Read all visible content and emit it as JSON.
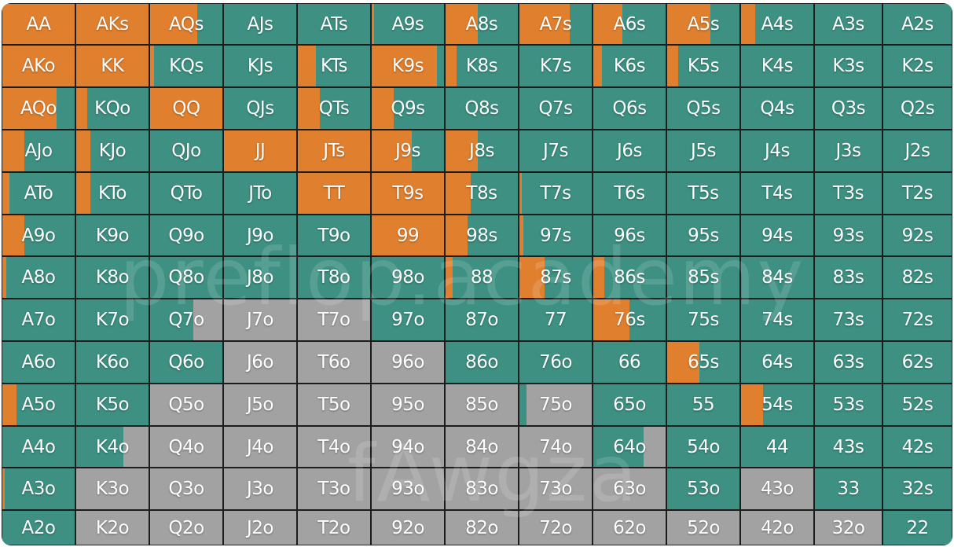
{
  "legend_colors": {
    "raise": "#e07f2e",
    "call": "#3d9082",
    "fold": "#a2a2a2"
  },
  "watermarks": [
    "preflop.academy",
    "fAwgza"
  ],
  "rows": [
    [
      [
        "AA",
        1,
        0
      ],
      [
        "AKs",
        1,
        0
      ],
      [
        "AQs",
        0.65,
        0
      ],
      [
        "AJs",
        0,
        0
      ],
      [
        "ATs",
        0,
        0
      ],
      [
        "A9s",
        0.03,
        0
      ],
      [
        "A8s",
        0.45,
        0
      ],
      [
        "A7s",
        0.7,
        0
      ],
      [
        "A6s",
        0.4,
        0
      ],
      [
        "A5s",
        0.6,
        0
      ],
      [
        "A4s",
        0.2,
        0
      ],
      [
        "A3s",
        0,
        0
      ],
      [
        "A2s",
        0,
        0
      ]
    ],
    [
      [
        "AKo",
        1,
        0
      ],
      [
        "KK",
        1,
        0
      ],
      [
        "KQs",
        0.05,
        0
      ],
      [
        "KJs",
        0,
        0
      ],
      [
        "KTs",
        0.25,
        0
      ],
      [
        "K9s",
        0.9,
        0
      ],
      [
        "K8s",
        0.15,
        0
      ],
      [
        "K7s",
        0,
        0
      ],
      [
        "K6s",
        0.12,
        0
      ],
      [
        "K5s",
        0.15,
        0
      ],
      [
        "K4s",
        0,
        0
      ],
      [
        "K3s",
        0,
        0
      ],
      [
        "K2s",
        0,
        0
      ]
    ],
    [
      [
        "AQo",
        0.75,
        0
      ],
      [
        "KQo",
        0.15,
        0
      ],
      [
        "QQ",
        1,
        0
      ],
      [
        "QJs",
        0,
        0
      ],
      [
        "QTs",
        0.3,
        0
      ],
      [
        "Q9s",
        0.3,
        0
      ],
      [
        "Q8s",
        0,
        0
      ],
      [
        "Q7s",
        0,
        0
      ],
      [
        "Q6s",
        0,
        0
      ],
      [
        "Q5s",
        0,
        0
      ],
      [
        "Q4s",
        0,
        0
      ],
      [
        "Q3s",
        0,
        0
      ],
      [
        "Q2s",
        0,
        0
      ]
    ],
    [
      [
        "AJo",
        0.3,
        0
      ],
      [
        "KJo",
        0.2,
        0
      ],
      [
        "QJo",
        0,
        0
      ],
      [
        "JJ",
        1,
        0
      ],
      [
        "JTs",
        1,
        0
      ],
      [
        "J9s",
        0.55,
        0
      ],
      [
        "J8s",
        0.45,
        0
      ],
      [
        "J7s",
        0,
        0
      ],
      [
        "J6s",
        0,
        0
      ],
      [
        "J5s",
        0,
        0
      ],
      [
        "J4s",
        0,
        0
      ],
      [
        "J3s",
        0,
        0
      ],
      [
        "J2s",
        0,
        0
      ]
    ],
    [
      [
        "ATo",
        0.1,
        0
      ],
      [
        "KTo",
        0.2,
        0
      ],
      [
        "QTo",
        0,
        0
      ],
      [
        "JTo",
        0,
        0
      ],
      [
        "TT",
        1,
        0
      ],
      [
        "T9s",
        1,
        0
      ],
      [
        "T8s",
        0.35,
        0
      ],
      [
        "T7s",
        0.03,
        0
      ],
      [
        "T6s",
        0,
        0
      ],
      [
        "T5s",
        0,
        0
      ],
      [
        "T4s",
        0,
        0
      ],
      [
        "T3s",
        0,
        0
      ],
      [
        "T2s",
        0,
        0
      ]
    ],
    [
      [
        "A9o",
        0.3,
        0
      ],
      [
        "K9o",
        0,
        0
      ],
      [
        "Q9o",
        0,
        0
      ],
      [
        "J9o",
        0,
        0
      ],
      [
        "T9o",
        0,
        0
      ],
      [
        "99",
        1,
        0
      ],
      [
        "98s",
        0.3,
        0
      ],
      [
        "97s",
        0.05,
        0
      ],
      [
        "96s",
        0,
        0
      ],
      [
        "95s",
        0,
        0
      ],
      [
        "94s",
        0,
        0
      ],
      [
        "93s",
        0,
        0
      ],
      [
        "92s",
        0,
        0
      ]
    ],
    [
      [
        "A8o",
        0.05,
        0
      ],
      [
        "K8o",
        0,
        0
      ],
      [
        "Q8o",
        0,
        0
      ],
      [
        "J8o",
        0,
        0
      ],
      [
        "T8o",
        0,
        0
      ],
      [
        "98o",
        0,
        0
      ],
      [
        "88",
        0.1,
        0
      ],
      [
        "87s",
        0.35,
        0
      ],
      [
        "86s",
        0.15,
        0
      ],
      [
        "85s",
        0,
        0
      ],
      [
        "84s",
        0,
        0
      ],
      [
        "83s",
        0,
        0
      ],
      [
        "82s",
        0,
        0
      ]
    ],
    [
      [
        "A7o",
        0,
        0
      ],
      [
        "K7o",
        0,
        0
      ],
      [
        "Q7o",
        0,
        0.4
      ],
      [
        "J7o",
        0,
        1
      ],
      [
        "T7o",
        0,
        1
      ],
      [
        "97o",
        0,
        0
      ],
      [
        "87o",
        0,
        0
      ],
      [
        "77",
        0,
        0
      ],
      [
        "76s",
        0.5,
        0
      ],
      [
        "75s",
        0,
        0
      ],
      [
        "74s",
        0,
        0
      ],
      [
        "73s",
        0,
        0
      ],
      [
        "72s",
        0,
        0
      ]
    ],
    [
      [
        "A6o",
        0,
        0
      ],
      [
        "K6o",
        0,
        0
      ],
      [
        "Q6o",
        0,
        0
      ],
      [
        "J6o",
        0,
        1
      ],
      [
        "T6o",
        0,
        1
      ],
      [
        "96o",
        0,
        1
      ],
      [
        "86o",
        0,
        0
      ],
      [
        "76o",
        0,
        0
      ],
      [
        "66",
        0,
        0
      ],
      [
        "65s",
        0.45,
        0
      ],
      [
        "64s",
        0,
        0
      ],
      [
        "63s",
        0,
        0
      ],
      [
        "62s",
        0,
        0
      ]
    ],
    [
      [
        "A5o",
        0.2,
        0
      ],
      [
        "K5o",
        0,
        0
      ],
      [
        "Q5o",
        0,
        1
      ],
      [
        "J5o",
        0,
        1
      ],
      [
        "T5o",
        0,
        1
      ],
      [
        "95o",
        0,
        1
      ],
      [
        "85o",
        0,
        1
      ],
      [
        "75o",
        0,
        0.9
      ],
      [
        "65o",
        0,
        0
      ],
      [
        "55",
        0,
        0
      ],
      [
        "54s",
        0.3,
        0
      ],
      [
        "53s",
        0,
        0
      ],
      [
        "52s",
        0,
        0
      ]
    ],
    [
      [
        "A4o",
        0,
        0
      ],
      [
        "K4o",
        0,
        0.35
      ],
      [
        "Q4o",
        0,
        1
      ],
      [
        "J4o",
        0,
        1
      ],
      [
        "T4o",
        0,
        1
      ],
      [
        "94o",
        0,
        1
      ],
      [
        "84o",
        0,
        1
      ],
      [
        "74o",
        0,
        1
      ],
      [
        "64o",
        0,
        0.3
      ],
      [
        "54o",
        0,
        0
      ],
      [
        "44",
        0,
        0
      ],
      [
        "43s",
        0,
        0
      ],
      [
        "42s",
        0,
        0
      ]
    ],
    [
      [
        "A3o",
        0.03,
        0
      ],
      [
        "K3o",
        0,
        1
      ],
      [
        "Q3o",
        0,
        1
      ],
      [
        "J3o",
        0,
        1
      ],
      [
        "T3o",
        0,
        1
      ],
      [
        "93o",
        0,
        1
      ],
      [
        "83o",
        0,
        1
      ],
      [
        "73o",
        0,
        1
      ],
      [
        "63o",
        0,
        1
      ],
      [
        "53o",
        0,
        0
      ],
      [
        "43o",
        0,
        1
      ],
      [
        "33",
        0,
        0
      ],
      [
        "32s",
        0,
        0
      ]
    ],
    [
      [
        "A2o",
        0,
        0
      ],
      [
        "K2o",
        0,
        1
      ],
      [
        "Q2o",
        0,
        1
      ],
      [
        "J2o",
        0,
        1
      ],
      [
        "T2o",
        0,
        1
      ],
      [
        "92o",
        0,
        1
      ],
      [
        "82o",
        0,
        1
      ],
      [
        "72o",
        0,
        1
      ],
      [
        "62o",
        0,
        1
      ],
      [
        "52o",
        0,
        1
      ],
      [
        "42o",
        0,
        1
      ],
      [
        "32o",
        0,
        1
      ],
      [
        "22",
        0,
        0
      ]
    ]
  ]
}
